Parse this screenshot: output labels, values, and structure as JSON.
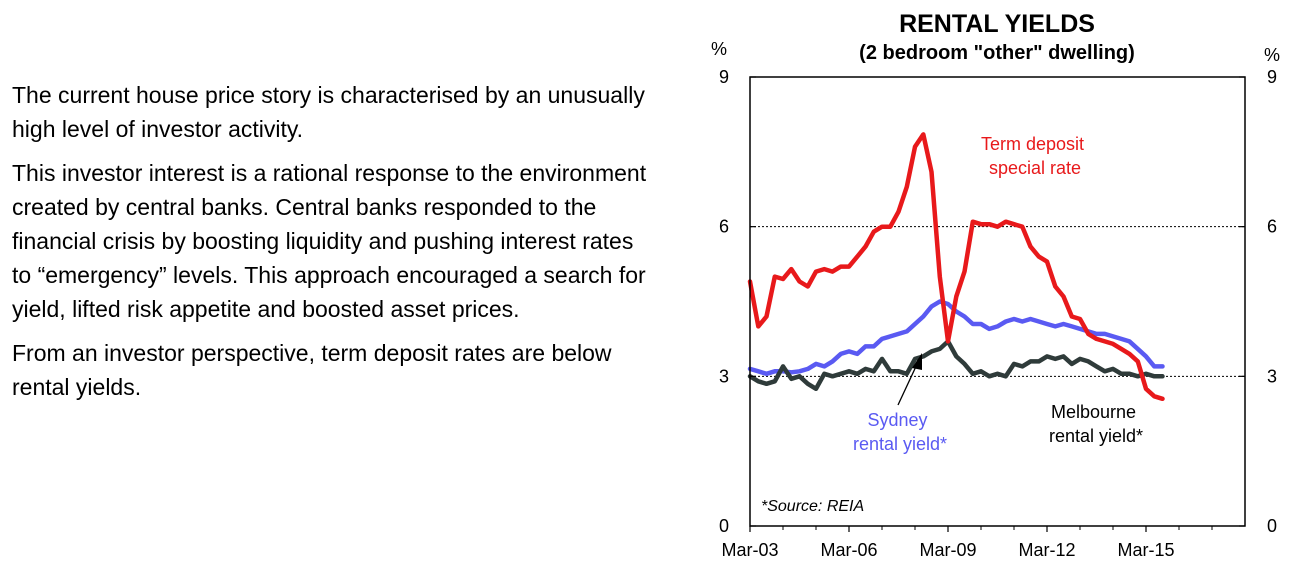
{
  "text": {
    "paragraphs": [
      "The current house price story is characterised by an unusually high level of investor activity.",
      "This investor interest is a rational response to the environment created by central banks. Central banks responded to the financial crisis by boosting liquidity and pushing interest rates to “emergency” levels.  This approach encouraged a search for yield, lifted risk appetite and boosted asset prices.",
      "From an investor perspective, term deposit rates are below rental yields."
    ]
  },
  "chart_data": {
    "type": "line",
    "title": "RENTAL YIELDS",
    "subtitle": "(2 bedroom \"other\" dwelling)",
    "y_unit_left": "%",
    "y_unit_right": "%",
    "xlim": [
      2003.17,
      2018.17
    ],
    "ylim": [
      0,
      9
    ],
    "y_ticks": [
      0,
      3,
      6,
      9
    ],
    "x_ticks": [
      {
        "label": "Mar-03",
        "value": 2003.17
      },
      {
        "label": "Mar-06",
        "value": 2006.17
      },
      {
        "label": "Mar-09",
        "value": 2009.17
      },
      {
        "label": "Mar-12",
        "value": 2012.17
      },
      {
        "label": "Mar-15",
        "value": 2015.17
      }
    ],
    "gridlines": [
      3,
      6
    ],
    "source_note": "*Source: REIA",
    "series": [
      {
        "name": "Term deposit special rate",
        "label_lines": [
          "Term deposit",
          "special rate"
        ],
        "color": "#e8191b",
        "x": [
          2003.17,
          2003.42,
          2003.67,
          2003.92,
          2004.17,
          2004.42,
          2004.67,
          2004.92,
          2005.17,
          2005.42,
          2005.67,
          2005.92,
          2006.17,
          2006.42,
          2006.67,
          2006.92,
          2007.17,
          2007.42,
          2007.67,
          2007.92,
          2008.17,
          2008.42,
          2008.67,
          2008.92,
          2009.17,
          2009.42,
          2009.67,
          2009.92,
          2010.17,
          2010.42,
          2010.67,
          2010.92,
          2011.17,
          2011.42,
          2011.67,
          2011.92,
          2012.17,
          2012.42,
          2012.67,
          2012.92,
          2013.17,
          2013.42,
          2013.67,
          2013.92,
          2014.17,
          2014.42,
          2014.67,
          2014.92,
          2015.17,
          2015.42,
          2015.67
        ],
        "values": [
          4.9,
          4.0,
          4.2,
          5.0,
          4.95,
          5.15,
          4.9,
          4.8,
          5.1,
          5.15,
          5.1,
          5.2,
          5.2,
          5.4,
          5.6,
          5.9,
          6.0,
          6.0,
          6.3,
          6.8,
          7.6,
          7.85,
          7.1,
          5.0,
          3.7,
          4.6,
          5.1,
          6.1,
          6.05,
          6.05,
          6.0,
          6.1,
          6.05,
          6.0,
          5.6,
          5.4,
          5.3,
          4.8,
          4.6,
          4.2,
          4.15,
          3.85,
          3.75,
          3.7,
          3.65,
          3.55,
          3.45,
          3.3,
          2.75,
          2.6,
          2.55
        ]
      },
      {
        "name": "Sydney rental yield*",
        "label_lines": [
          "Sydney",
          "rental yield*"
        ],
        "color": "#5a5af2",
        "x": [
          2003.17,
          2003.42,
          2003.67,
          2003.92,
          2004.17,
          2004.42,
          2004.67,
          2004.92,
          2005.17,
          2005.42,
          2005.67,
          2005.92,
          2006.17,
          2006.42,
          2006.67,
          2006.92,
          2007.17,
          2007.42,
          2007.67,
          2007.92,
          2008.17,
          2008.42,
          2008.67,
          2008.92,
          2009.17,
          2009.42,
          2009.67,
          2009.92,
          2010.17,
          2010.42,
          2010.67,
          2010.92,
          2011.17,
          2011.42,
          2011.67,
          2011.92,
          2012.17,
          2012.42,
          2012.67,
          2012.92,
          2013.17,
          2013.42,
          2013.67,
          2013.92,
          2014.17,
          2014.42,
          2014.67,
          2014.92,
          2015.17,
          2015.42,
          2015.67
        ],
        "values": [
          3.15,
          3.1,
          3.05,
          3.1,
          3.1,
          3.08,
          3.1,
          3.15,
          3.25,
          3.2,
          3.3,
          3.45,
          3.5,
          3.45,
          3.6,
          3.6,
          3.75,
          3.8,
          3.85,
          3.9,
          4.05,
          4.2,
          4.4,
          4.5,
          4.45,
          4.3,
          4.2,
          4.05,
          4.05,
          3.95,
          4.0,
          4.1,
          4.15,
          4.1,
          4.15,
          4.1,
          4.05,
          4.0,
          4.05,
          4.0,
          3.95,
          3.9,
          3.85,
          3.85,
          3.8,
          3.75,
          3.7,
          3.55,
          3.4,
          3.2,
          3.2
        ]
      },
      {
        "name": "Melbourne rental yield*",
        "label_lines": [
          "Melbourne",
          "rental yield*"
        ],
        "color": "#2f3b3a",
        "x": [
          2003.17,
          2003.42,
          2003.67,
          2003.92,
          2004.17,
          2004.42,
          2004.67,
          2004.92,
          2005.17,
          2005.42,
          2005.67,
          2005.92,
          2006.17,
          2006.42,
          2006.67,
          2006.92,
          2007.17,
          2007.42,
          2007.67,
          2007.92,
          2008.17,
          2008.42,
          2008.67,
          2008.92,
          2009.17,
          2009.42,
          2009.67,
          2009.92,
          2010.17,
          2010.42,
          2010.67,
          2010.92,
          2011.17,
          2011.42,
          2011.67,
          2011.92,
          2012.17,
          2012.42,
          2012.67,
          2012.92,
          2013.17,
          2013.42,
          2013.67,
          2013.92,
          2014.17,
          2014.42,
          2014.67,
          2014.92,
          2015.17,
          2015.42,
          2015.67
        ],
        "values": [
          3.0,
          2.9,
          2.85,
          2.9,
          3.2,
          2.95,
          3.0,
          2.85,
          2.75,
          3.05,
          3.0,
          3.05,
          3.1,
          3.05,
          3.15,
          3.1,
          3.35,
          3.1,
          3.1,
          3.05,
          3.35,
          3.4,
          3.5,
          3.55,
          3.7,
          3.4,
          3.25,
          3.05,
          3.1,
          3.0,
          3.05,
          3.0,
          3.25,
          3.2,
          3.3,
          3.3,
          3.4,
          3.35,
          3.4,
          3.25,
          3.35,
          3.3,
          3.2,
          3.1,
          3.15,
          3.05,
          3.05,
          3.0,
          3.05,
          3.0,
          3.0
        ]
      }
    ]
  }
}
